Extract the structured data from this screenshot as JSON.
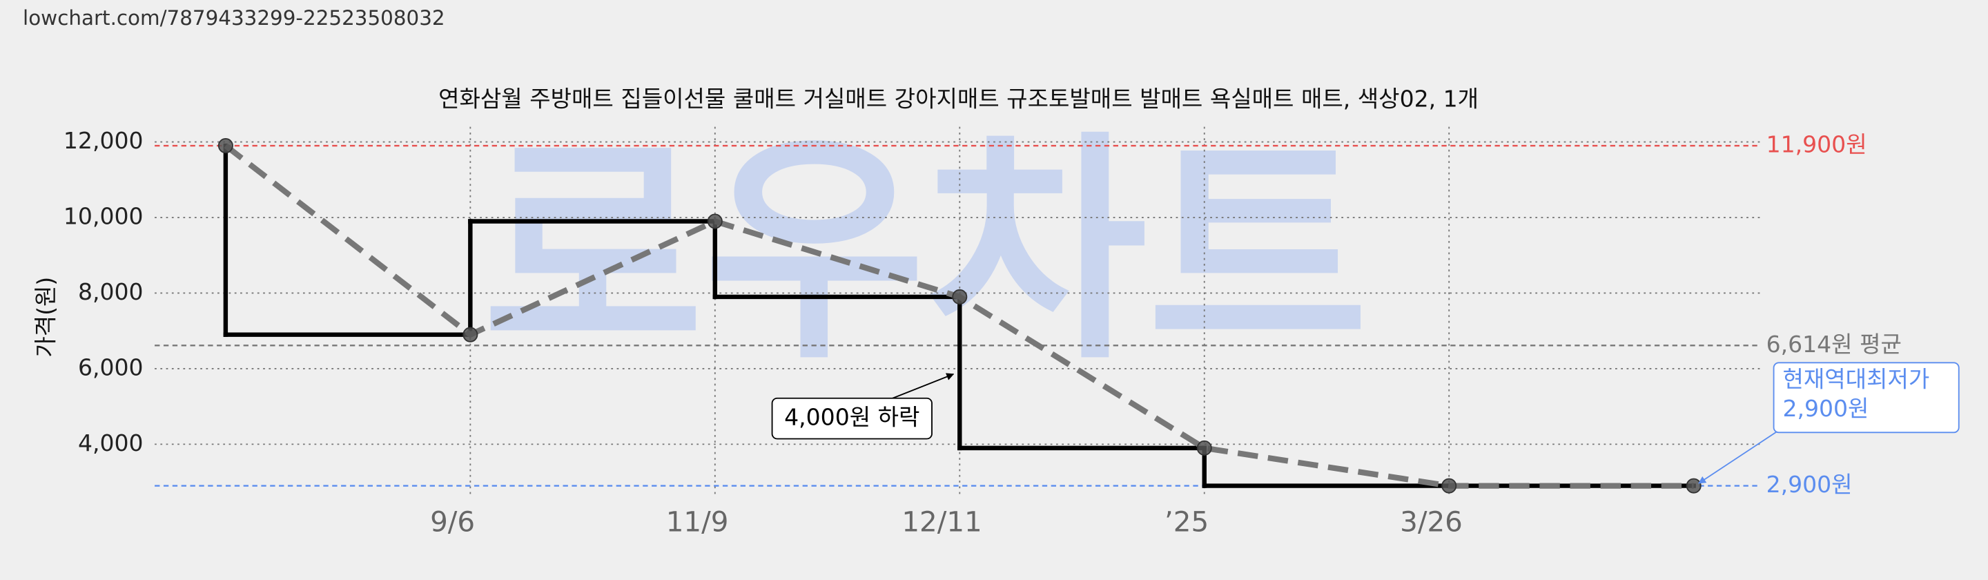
{
  "url": "lowchart.com/7879433299-22523508032",
  "chart_data": {
    "type": "line",
    "title": "연화삼월 주방매트 집들이선물 쿨매트 거실매트 강아지매트 규조토발매트 발매트 욕실매트 매트, 색상02, 1개",
    "y_label": "가격(원)",
    "watermark": "로우차트",
    "x": [
      0,
      1,
      2,
      3,
      4,
      5,
      6
    ],
    "values": [
      11900,
      6900,
      9900,
      7900,
      3900,
      2900,
      2900
    ],
    "color": "#777777",
    "step_color": "#000000",
    "xlim": [
      -0.29,
      6.27
    ],
    "xticks": [
      {
        "value": 1,
        "label": "9/6"
      },
      {
        "value": 2,
        "label": "11/9"
      },
      {
        "value": 3,
        "label": "12/11"
      },
      {
        "value": 4,
        "label": "’25"
      },
      {
        "value": 5,
        "label": "3/26"
      }
    ],
    "ylim": [
      2600,
      12400
    ],
    "yticks": [
      {
        "value": 12000,
        "label": "12,000"
      },
      {
        "value": 10000,
        "label": "10,000"
      },
      {
        "value": 8000,
        "label": "8,000"
      },
      {
        "value": 6000,
        "label": "6,000"
      },
      {
        "value": 4000,
        "label": "4,000"
      }
    ],
    "grid": true,
    "reference_lines": [
      {
        "value": 11900,
        "label": "11,900원",
        "color": "#e8504f"
      },
      {
        "value": 6614,
        "label": "6,614원 평균",
        "color": "#777777"
      },
      {
        "value": 2900,
        "label": "2,900원",
        "color": "#5b8def"
      }
    ],
    "annotations": [
      {
        "text": "4,000원 하락"
      },
      {
        "lines": [
          "현재역대최저가",
          "2,900원"
        ]
      }
    ]
  }
}
